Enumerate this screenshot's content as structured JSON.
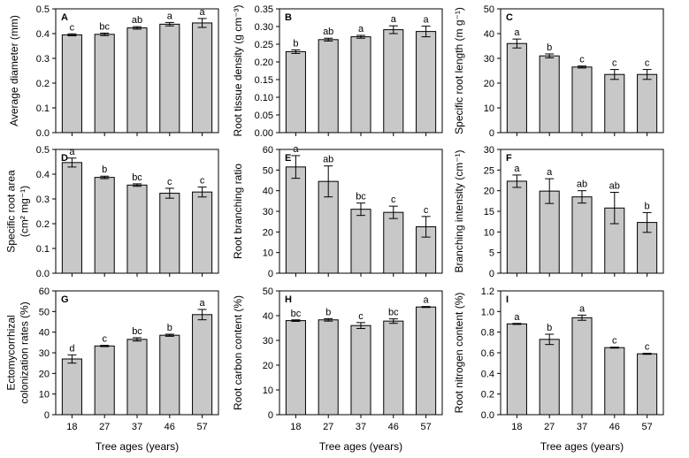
{
  "x_axis_title": "Tree ages (years)",
  "chart_data": [
    {
      "type": "bar",
      "letter": "A",
      "ylabel": [
        "Average diameter (mm)"
      ],
      "ylim": [
        0,
        0.5
      ],
      "yticks": [
        "0.0",
        "0.1",
        "0.2",
        "0.3",
        "0.4",
        "0.5"
      ],
      "categories": [
        "18",
        "27",
        "37",
        "46",
        "57"
      ],
      "values": [
        0.395,
        0.397,
        0.423,
        0.438,
        0.443
      ],
      "errors": [
        0.004,
        0.005,
        0.005,
        0.007,
        0.018
      ],
      "labels": [
        "c",
        "bc",
        "ab",
        "a",
        "a"
      ]
    },
    {
      "type": "bar",
      "letter": "B",
      "ylabel": [
        "Root tissue density (g cm⁻³)"
      ],
      "ylim": [
        0,
        0.35
      ],
      "yticks": [
        "0.00",
        "0.05",
        "0.10",
        "0.15",
        "0.20",
        "0.25",
        "0.30",
        "0.35"
      ],
      "categories": [
        "18",
        "27",
        "37",
        "46",
        "57"
      ],
      "values": [
        0.229,
        0.263,
        0.271,
        0.291,
        0.286
      ],
      "errors": [
        0.005,
        0.004,
        0.004,
        0.011,
        0.015
      ],
      "labels": [
        "b",
        "ab",
        "a",
        "a",
        "a"
      ]
    },
    {
      "type": "bar",
      "letter": "C",
      "ylabel": [
        "Specific root length (m g⁻¹)"
      ],
      "ylim": [
        0,
        50
      ],
      "yticks": [
        "0",
        "10",
        "20",
        "30",
        "40",
        "50"
      ],
      "categories": [
        "18",
        "27",
        "37",
        "46",
        "57"
      ],
      "values": [
        36,
        31,
        26.5,
        23.5,
        23.5
      ],
      "errors": [
        1.8,
        0.8,
        0.4,
        2.0,
        2.0
      ],
      "labels": [
        "a",
        "b",
        "c",
        "c",
        "c"
      ]
    },
    {
      "type": "bar",
      "letter": "D",
      "ylabel": [
        "Specific root area",
        "(cm² mg⁻¹)"
      ],
      "ylim": [
        0,
        0.5
      ],
      "yticks": [
        "0.0",
        "0.1",
        "0.2",
        "0.3",
        "0.4",
        "0.5"
      ],
      "categories": [
        "18",
        "27",
        "37",
        "46",
        "57"
      ],
      "values": [
        0.447,
        0.387,
        0.356,
        0.323,
        0.328
      ],
      "errors": [
        0.018,
        0.005,
        0.005,
        0.02,
        0.02
      ],
      "labels": [
        "a",
        "b",
        "bc",
        "c",
        "c"
      ]
    },
    {
      "type": "bar",
      "letter": "E",
      "ylabel": [
        "Root branching ratio"
      ],
      "ylim": [
        0,
        60
      ],
      "yticks": [
        "0",
        "10",
        "20",
        "30",
        "40",
        "50",
        "60"
      ],
      "categories": [
        "18",
        "27",
        "37",
        "46",
        "57"
      ],
      "values": [
        51.5,
        44.5,
        31,
        29.5,
        22.5
      ],
      "errors": [
        5.5,
        7.5,
        3,
        3,
        5
      ],
      "labels": [
        "a",
        "ab",
        "bc",
        "c",
        "c"
      ]
    },
    {
      "type": "bar",
      "letter": "F",
      "ylabel": [
        "Branching intensity (cm⁻¹)"
      ],
      "ylim": [
        0,
        30
      ],
      "yticks": [
        "0",
        "5",
        "10",
        "15",
        "20",
        "25",
        "30"
      ],
      "categories": [
        "18",
        "27",
        "37",
        "46",
        "57"
      ],
      "values": [
        22.3,
        19.9,
        18.5,
        15.8,
        12.3
      ],
      "errors": [
        1.5,
        3,
        1.5,
        3.8,
        2.4
      ],
      "labels": [
        "a",
        "a",
        "ab",
        "ab",
        "b"
      ]
    },
    {
      "type": "bar",
      "letter": "G",
      "ylabel": [
        "Ectomycorrhizal",
        "colonization rates (%)"
      ],
      "ylim": [
        0,
        60
      ],
      "yticks": [
        "0",
        "10",
        "20",
        "30",
        "40",
        "50",
        "60"
      ],
      "categories": [
        "18",
        "27",
        "37",
        "46",
        "57"
      ],
      "values": [
        27,
        33.3,
        36.5,
        38.5,
        48.5
      ],
      "errors": [
        2,
        0.3,
        0.8,
        0.5,
        2.5
      ],
      "labels": [
        "d",
        "c",
        "bc",
        "b",
        "a"
      ]
    },
    {
      "type": "bar",
      "letter": "H",
      "ylabel": [
        "Root carbon content (%)"
      ],
      "ylim": [
        0,
        50
      ],
      "yticks": [
        "0",
        "10",
        "20",
        "30",
        "40",
        "50"
      ],
      "categories": [
        "18",
        "27",
        "37",
        "46",
        "57"
      ],
      "values": [
        38,
        38.3,
        36,
        37.8,
        43.5
      ],
      "errors": [
        0.3,
        0.5,
        1.2,
        0.9,
        0.2
      ],
      "labels": [
        "bc",
        "b",
        "c",
        "bc",
        "a"
      ]
    },
    {
      "type": "bar",
      "letter": "I",
      "ylabel": [
        "Root nitrogen content (%)"
      ],
      "ylim": [
        0,
        1.2
      ],
      "yticks": [
        "0.0",
        "0.2",
        "0.4",
        "0.6",
        "0.8",
        "1.0",
        "1.2"
      ],
      "categories": [
        "18",
        "27",
        "37",
        "46",
        "57"
      ],
      "values": [
        0.88,
        0.73,
        0.94,
        0.65,
        0.59
      ],
      "errors": [
        0.005,
        0.05,
        0.025,
        0.005,
        0.005
      ],
      "labels": [
        "a",
        "b",
        "a",
        "c",
        "c"
      ]
    }
  ]
}
